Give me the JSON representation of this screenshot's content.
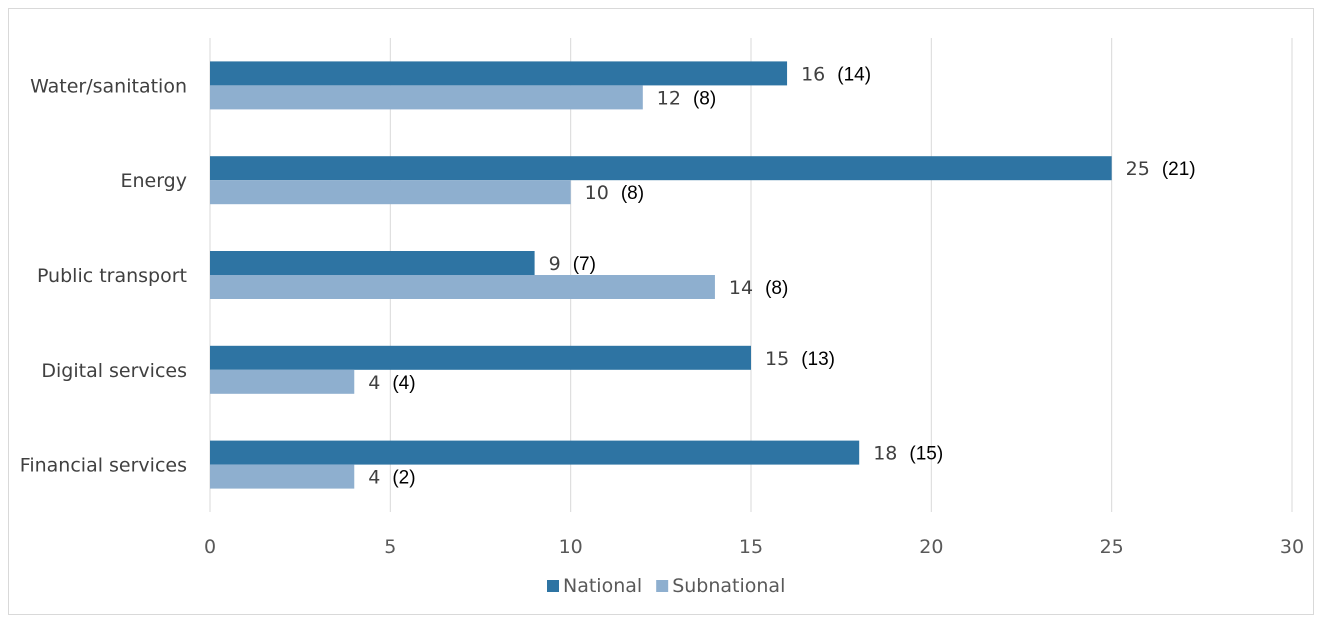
{
  "chart_data": {
    "type": "bar",
    "orientation": "horizontal",
    "categories": [
      "Water/sanitation",
      "Energy",
      "Public transport",
      "Digital services",
      "Financial services"
    ],
    "series": [
      {
        "name": "National",
        "values": [
          16,
          25,
          9,
          15,
          18
        ],
        "paren": [
          "(14)",
          "(21)",
          "(7)",
          "(13)",
          "(15)"
        ]
      },
      {
        "name": "Subnational",
        "values": [
          12,
          10,
          14,
          4,
          4
        ],
        "paren": [
          "(8)",
          "(8)",
          "(8)",
          "(4)",
          "(2)"
        ]
      }
    ],
    "xlim": [
      0,
      30
    ],
    "xticks": [
      0,
      5,
      10,
      15,
      20,
      25,
      30
    ],
    "grid": "vertical",
    "legend_position": "bottom",
    "colors": {
      "National": "#2e74a3",
      "Subnational": "#8eafcf"
    }
  }
}
